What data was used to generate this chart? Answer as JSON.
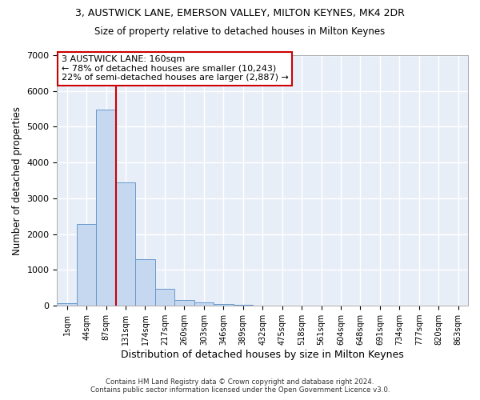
{
  "title": "3, AUSTWICK LANE, EMERSON VALLEY, MILTON KEYNES, MK4 2DR",
  "subtitle": "Size of property relative to detached houses in Milton Keynes",
  "xlabel": "Distribution of detached houses by size in Milton Keynes",
  "ylabel": "Number of detached properties",
  "footer_line1": "Contains HM Land Registry data © Crown copyright and database right 2024.",
  "footer_line2": "Contains public sector information licensed under the Open Government Licence v3.0.",
  "bar_color": "#c5d8f0",
  "bar_edge_color": "#6699cc",
  "bg_color": "#e8eef8",
  "grid_color": "#ffffff",
  "annotation_box_color": "#cc0000",
  "vline_color": "#cc0000",
  "categories": [
    "1sqm",
    "44sqm",
    "87sqm",
    "131sqm",
    "174sqm",
    "217sqm",
    "260sqm",
    "303sqm",
    "346sqm",
    "389sqm",
    "432sqm",
    "475sqm",
    "518sqm",
    "561sqm",
    "604sqm",
    "648sqm",
    "691sqm",
    "734sqm",
    "777sqm",
    "820sqm",
    "863sqm"
  ],
  "values": [
    80,
    2280,
    5480,
    3450,
    1310,
    470,
    160,
    85,
    55,
    30,
    10,
    5,
    0,
    0,
    0,
    0,
    0,
    0,
    0,
    0,
    0
  ],
  "ylim": [
    0,
    7000
  ],
  "annotation_line1": "3 AUSTWICK LANE: 160sqm",
  "annotation_line2": "← 78% of detached houses are smaller (10,243)",
  "annotation_line3": "22% of semi-detached houses are larger (2,887) →",
  "vline_x_val": 3.0
}
